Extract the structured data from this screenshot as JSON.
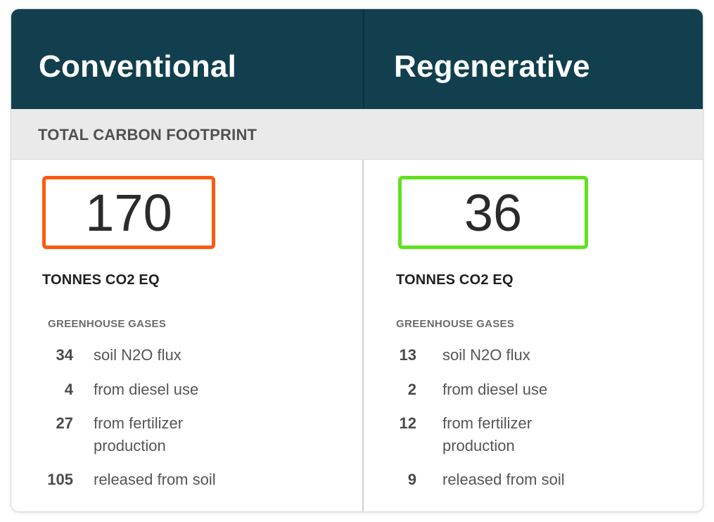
{
  "columns": [
    {
      "title": "Conventional",
      "total": "170",
      "unit": "TONNES CO2 EQ",
      "gases_label": "GREENHOUSE GASES",
      "gases": [
        {
          "value": "34",
          "label": "soil N2O flux"
        },
        {
          "value": "4",
          "label": "from diesel use"
        },
        {
          "value": "27",
          "label": "from fertilizer production"
        },
        {
          "value": "105",
          "label": "released from soil"
        }
      ],
      "box_color": "#fb5a0e"
    },
    {
      "title": "Regenerative",
      "total": "36",
      "unit": "TONNES CO2 EQ",
      "gases_label": "GREENHOUSE GASES",
      "gases": [
        {
          "value": "13",
          "label": "soil N2O flux"
        },
        {
          "value": "2",
          "label": "from diesel use"
        },
        {
          "value": "12",
          "label": "from fertilizer production"
        },
        {
          "value": "9",
          "label": "released from soil"
        }
      ],
      "box_color": "#5fe21c"
    }
  ],
  "section_title": "TOTAL CARBON FOOTPRINT",
  "colors": {
    "header_bg": "#113f4e",
    "subheader_bg": "#eaeaea"
  }
}
